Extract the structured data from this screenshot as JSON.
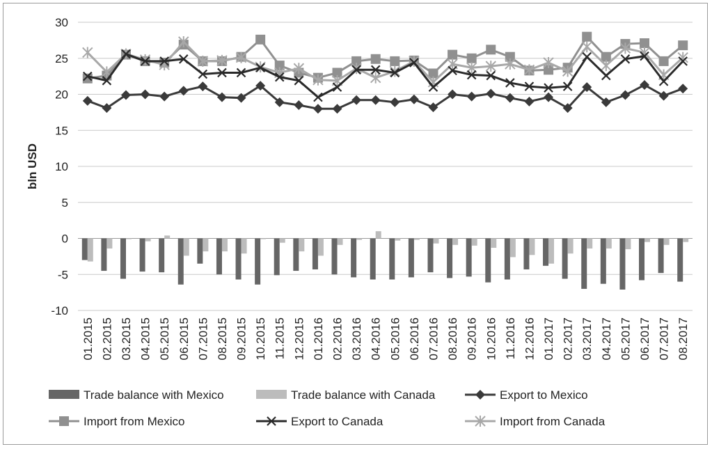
{
  "chart_data": {
    "type": "line",
    "ylabel": "bln USD",
    "ylim": [
      -10,
      30
    ],
    "yticks": [
      30,
      25,
      20,
      15,
      10,
      5,
      0,
      -5,
      -10
    ],
    "grid": true,
    "legend_position": "bottom",
    "categories": [
      "01.2015",
      "02.2015",
      "03.2015",
      "04.2015",
      "05.2015",
      "06.2015",
      "07.2015",
      "08.2015",
      "09.2015",
      "10.2015",
      "11.2015",
      "12.2015",
      "01.2016",
      "02.2016",
      "03.2016",
      "04.2016",
      "05.2016",
      "06.2016",
      "07.2016",
      "08.2016",
      "09.2016",
      "10.2016",
      "11.2016",
      "12.2016",
      "01.2017",
      "02.2017",
      "03.2017",
      "04.2017",
      "05.2017",
      "06.2017",
      "07.2017",
      "08.2017"
    ],
    "series": [
      {
        "name": "Trade balance with Mexico",
        "kind": "bar",
        "color": "#666666",
        "values": [
          -3.0,
          -4.5,
          -5.6,
          -4.6,
          -4.7,
          -6.4,
          -3.5,
          -5.0,
          -5.7,
          -6.4,
          -5.1,
          -4.5,
          -4.3,
          -5.0,
          -5.4,
          -5.7,
          -5.7,
          -5.4,
          -4.7,
          -5.5,
          -5.3,
          -6.1,
          -5.7,
          -4.3,
          -3.8,
          -5.6,
          -7.0,
          -6.3,
          -7.1,
          -5.8,
          -4.8,
          -6.0
        ]
      },
      {
        "name": "Trade balance with Canada",
        "kind": "bar",
        "color": "#bcbcbc",
        "values": [
          -3.2,
          -1.4,
          -0.1,
          -0.4,
          0.4,
          -2.4,
          -1.8,
          -1.8,
          -2.1,
          -0.1,
          -0.6,
          -1.8,
          -2.4,
          -0.9,
          -0.2,
          1.0,
          -0.3,
          -0.2,
          -0.7,
          -0.9,
          -1.0,
          -1.3,
          -2.6,
          -2.3,
          -3.5,
          -2.1,
          -1.4,
          -1.4,
          -1.5,
          -0.5,
          -0.9,
          -0.5
        ]
      },
      {
        "name": "Export to Mexico",
        "kind": "line",
        "marker": "diamond",
        "color": "#3a3a3a",
        "values": [
          19.1,
          18.1,
          19.9,
          20.0,
          19.7,
          20.5,
          21.1,
          19.6,
          19.5,
          21.2,
          18.9,
          18.5,
          18.0,
          18.0,
          19.2,
          19.2,
          18.9,
          19.3,
          18.2,
          20.0,
          19.7,
          20.1,
          19.5,
          19.0,
          19.6,
          18.1,
          21.0,
          18.9,
          19.9,
          21.3,
          19.8,
          20.8
        ]
      },
      {
        "name": "Import from Mexico",
        "kind": "line",
        "marker": "square",
        "color": "#909090",
        "values": [
          22.2,
          22.6,
          25.5,
          24.6,
          24.4,
          26.9,
          24.6,
          24.6,
          25.2,
          27.6,
          24.0,
          23.0,
          22.3,
          23.0,
          24.6,
          24.9,
          24.6,
          24.7,
          22.9,
          25.5,
          25.0,
          26.2,
          25.2,
          23.3,
          23.4,
          23.7,
          28.0,
          25.2,
          27.0,
          27.1,
          24.6,
          26.8
        ]
      },
      {
        "name": "Export to Canada",
        "kind": "line",
        "marker": "x",
        "color": "#2a2a2a",
        "values": [
          22.5,
          21.9,
          25.6,
          24.6,
          24.6,
          24.9,
          22.8,
          23.0,
          23.0,
          23.7,
          22.4,
          21.9,
          19.6,
          21.0,
          23.4,
          23.4,
          23.0,
          24.4,
          21.0,
          23.3,
          22.7,
          22.6,
          21.6,
          21.1,
          20.9,
          21.1,
          25.2,
          22.6,
          24.9,
          25.3,
          21.8,
          24.6
        ]
      },
      {
        "name": "Import from Canada",
        "kind": "line",
        "marker": "star",
        "color": "#a8a8a8",
        "values": [
          25.8,
          23.1,
          25.6,
          24.8,
          24.1,
          27.3,
          24.6,
          24.7,
          25.1,
          23.8,
          23.0,
          23.6,
          22.0,
          21.9,
          23.6,
          22.3,
          23.2,
          24.6,
          21.7,
          24.2,
          23.7,
          23.9,
          24.2,
          23.4,
          24.4,
          23.2,
          26.6,
          24.0,
          26.4,
          25.8,
          22.7,
          25.1
        ]
      }
    ]
  }
}
